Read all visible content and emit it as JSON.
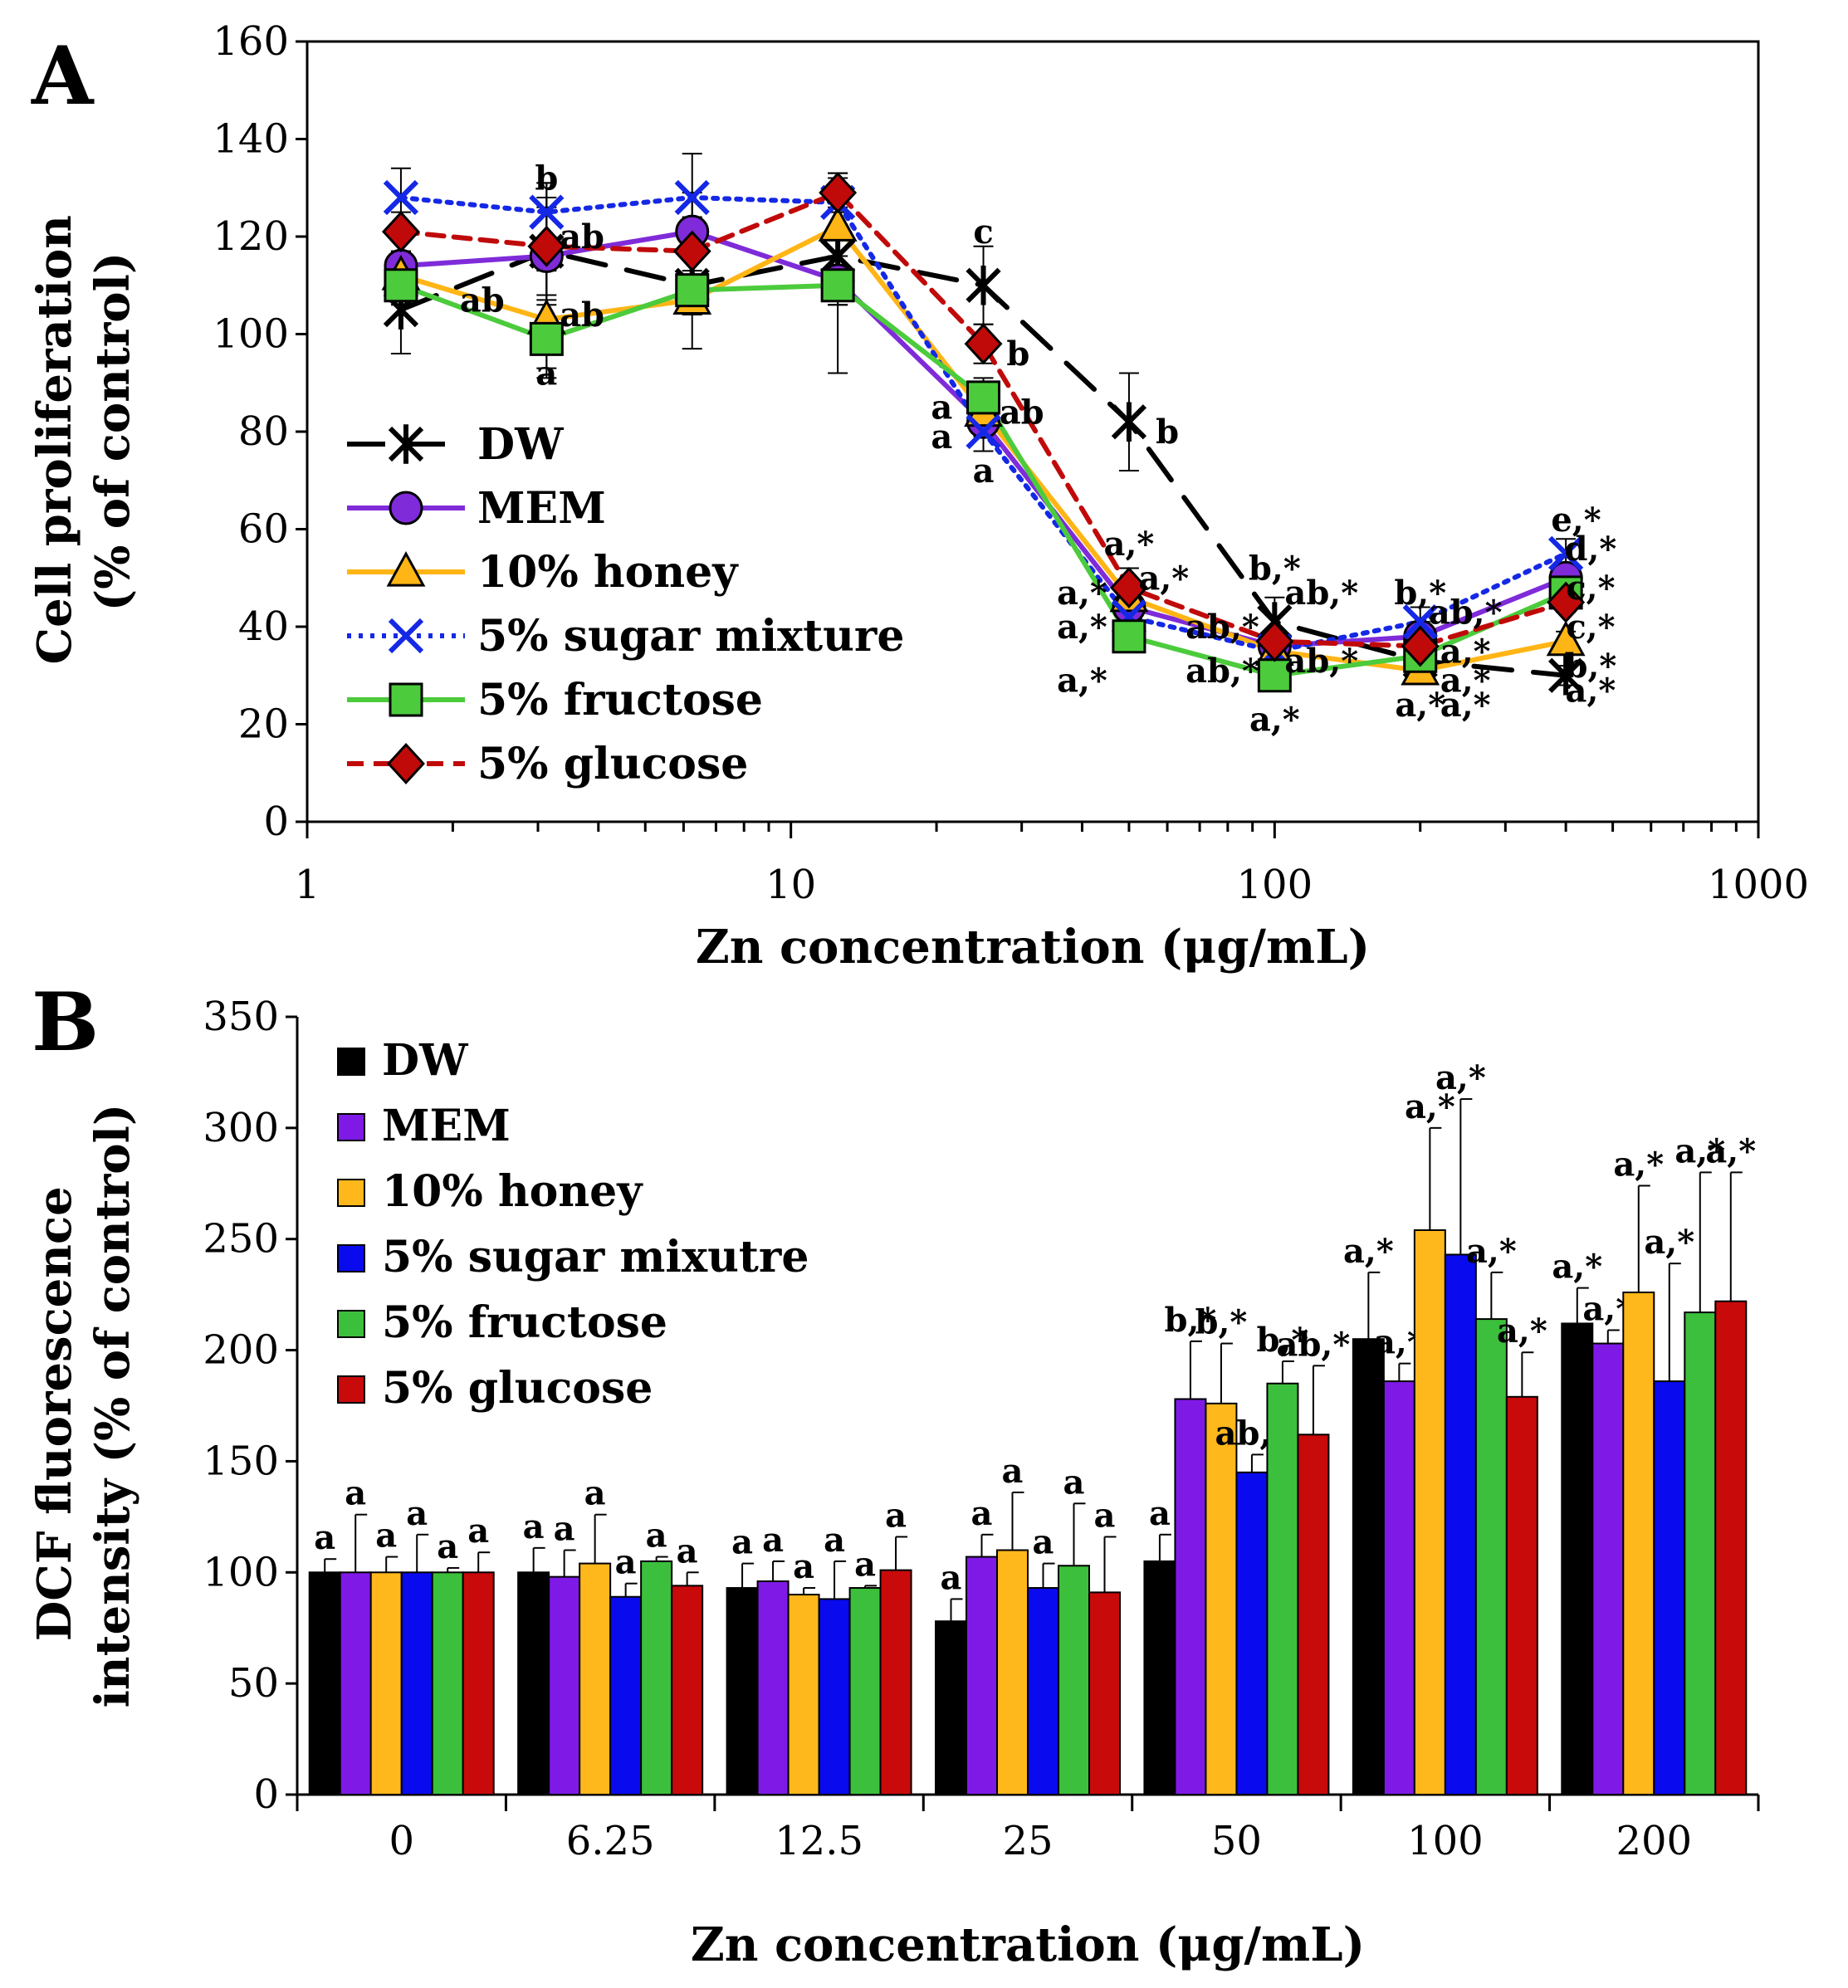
{
  "figure": {
    "panels": [
      "A",
      "B"
    ]
  },
  "chart_data": [
    {
      "panel": "A",
      "type": "line",
      "title": "",
      "xlabel": "Zn concentration (μg/mL)",
      "ylabel_lines": [
        "Cell proliferation",
        "(% of control)"
      ],
      "xscale": "log",
      "xlim": [
        1,
        1000
      ],
      "ylim": [
        0,
        160
      ],
      "x_ticks": [
        1,
        10,
        100,
        1000
      ],
      "x_tick_labels": [
        "1",
        "10",
        "100",
        "1000"
      ],
      "y_ticks": [
        0,
        20,
        40,
        60,
        80,
        100,
        120,
        140,
        160
      ],
      "y_tick_labels": [
        "0",
        "20",
        "40",
        "60",
        "80",
        "100",
        "120",
        "140",
        "160"
      ],
      "x": [
        1.5625,
        3.125,
        6.25,
        12.5,
        25,
        50,
        100,
        200,
        400
      ],
      "legend_position": "lower-left",
      "series": [
        {
          "name": "DW",
          "color": "#000000",
          "dash": "long-dash",
          "marker": "asterisk",
          "values": [
            105,
            117,
            110,
            116,
            110,
            82,
            41,
            33,
            30
          ],
          "err": [
            9,
            14,
            6,
            10,
            8,
            10,
            5,
            3,
            2
          ]
        },
        {
          "name": "MEM",
          "color": "#7F2BD9",
          "dash": "solid",
          "marker": "circle",
          "values": [
            114,
            116,
            121,
            111,
            82,
            44,
            36,
            38,
            50
          ],
          "err": [
            3,
            10,
            8,
            5,
            3,
            4,
            2,
            3,
            3
          ]
        },
        {
          "name": "10% honey",
          "color": "#FFB515",
          "dash": "solid",
          "marker": "triangle",
          "values": [
            112,
            103,
            107,
            122,
            84,
            46,
            35,
            31,
            37
          ],
          "err": [
            3,
            10,
            3,
            10,
            4,
            3,
            2,
            2,
            2
          ]
        },
        {
          "name": "5% sugar mixture",
          "color": "#1428E6",
          "dash": "dotted",
          "marker": "x",
          "values": [
            128,
            125,
            128,
            127,
            80,
            42,
            35,
            41,
            55
          ],
          "err": [
            6,
            6,
            9,
            6,
            4,
            3,
            2,
            3,
            3
          ]
        },
        {
          "name": "5% fructose",
          "color": "#4CCB3C",
          "dash": "solid",
          "marker": "square",
          "values": [
            110,
            99,
            109,
            110,
            87,
            38,
            30,
            34,
            47
          ],
          "err": [
            4,
            8,
            12,
            18,
            4,
            3,
            2,
            2,
            3
          ]
        },
        {
          "name": "5% glucose",
          "color": "#C00A0A",
          "dash": "dashed",
          "marker": "diamond",
          "values": [
            121,
            118,
            117,
            129,
            98,
            48,
            37,
            36,
            45
          ],
          "err": [
            4,
            10,
            7,
            4,
            4,
            4,
            2,
            3,
            2
          ]
        }
      ],
      "annotations": [
        {
          "text": "b",
          "x": 3.125,
          "y": 132
        },
        {
          "text": "ab",
          "x": 3.7,
          "y": 120
        },
        {
          "text": "ab",
          "x": 2.3,
          "y": 107
        },
        {
          "text": "ab",
          "x": 3.7,
          "y": 104
        },
        {
          "text": "a",
          "x": 3.125,
          "y": 92
        },
        {
          "text": "c",
          "x": 25,
          "y": 121
        },
        {
          "text": "b",
          "x": 29.5,
          "y": 96
        },
        {
          "text": "a",
          "x": 20.5,
          "y": 85
        },
        {
          "text": "ab",
          "x": 30,
          "y": 84
        },
        {
          "text": "a",
          "x": 20.5,
          "y": 79
        },
        {
          "text": "a",
          "x": 25,
          "y": 72
        },
        {
          "text": "b",
          "x": 60,
          "y": 80
        },
        {
          "text": "a,*",
          "x": 50,
          "y": 57
        },
        {
          "text": "a,*",
          "x": 59,
          "y": 50
        },
        {
          "text": "a,*",
          "x": 40,
          "y": 47
        },
        {
          "text": "a,*",
          "x": 40,
          "y": 40
        },
        {
          "text": "a,*",
          "x": 40,
          "y": 29
        },
        {
          "text": "b,*",
          "x": 100,
          "y": 52
        },
        {
          "text": "ab,*",
          "x": 125,
          "y": 47
        },
        {
          "text": "ab,*",
          "x": 78,
          "y": 40
        },
        {
          "text": "ab,*",
          "x": 125,
          "y": 33
        },
        {
          "text": "ab,*",
          "x": 78,
          "y": 31
        },
        {
          "text": "a,*",
          "x": 100,
          "y": 21
        },
        {
          "text": "b,*",
          "x": 200,
          "y": 47
        },
        {
          "text": "ab,*",
          "x": 248,
          "y": 43
        },
        {
          "text": "a,*",
          "x": 248,
          "y": 35
        },
        {
          "text": "a,*",
          "x": 248,
          "y": 29
        },
        {
          "text": "a,*",
          "x": 200,
          "y": 24
        },
        {
          "text": "a,*",
          "x": 248,
          "y": 24
        },
        {
          "text": "e,*",
          "x": 420,
          "y": 62
        },
        {
          "text": "d,*",
          "x": 450,
          "y": 56
        },
        {
          "text": "c,*",
          "x": 450,
          "y": 48
        },
        {
          "text": "c,*",
          "x": 450,
          "y": 40
        },
        {
          "text": "b,*",
          "x": 450,
          "y": 32
        },
        {
          "text": "a,*",
          "x": 450,
          "y": 27
        }
      ]
    },
    {
      "panel": "B",
      "type": "bar",
      "title": "",
      "xlabel": "Zn concentration (μg/mL)",
      "ylabel_lines": [
        "DCF fluorescence",
        "intensity (% of control)"
      ],
      "ylim": [
        0,
        350
      ],
      "y_ticks": [
        0,
        50,
        100,
        150,
        200,
        250,
        300,
        350
      ],
      "y_tick_labels": [
        "0",
        "50",
        "100",
        "150",
        "200",
        "250",
        "300",
        "350"
      ],
      "categories": [
        "0",
        "6.25",
        "12.5",
        "25",
        "50",
        "100",
        "200"
      ],
      "legend_position": "top-left",
      "series": [
        {
          "name": "DW",
          "color": "#000000",
          "values": [
            100,
            100,
            93,
            78,
            105,
            205,
            212
          ],
          "err": [
            6,
            11,
            11,
            10,
            12,
            30,
            16
          ],
          "labels": [
            "a",
            "a",
            "a",
            "a",
            "a",
            "a,*",
            "a,*"
          ]
        },
        {
          "name": "MEM",
          "color": "#7F1AE6",
          "values": [
            100,
            98,
            96,
            107,
            178,
            186,
            203
          ],
          "err": [
            26,
            12,
            9,
            10,
            26,
            8,
            6
          ],
          "labels": [
            "a",
            "a",
            "a",
            "a",
            "b,*",
            "a,*",
            "a,*"
          ]
        },
        {
          "name": "10% honey",
          "color": "#FFB81C",
          "values": [
            100,
            104,
            90,
            110,
            176,
            254,
            226
          ],
          "err": [
            7,
            22,
            3,
            26,
            27,
            46,
            48
          ],
          "labels": [
            "a",
            "a",
            "a",
            "a",
            "b,*",
            "a,*",
            "a,*"
          ]
        },
        {
          "name": "5% sugar mixutre",
          "color": "#0A0AEE",
          "values": [
            100,
            89,
            88,
            93,
            145,
            243,
            186
          ],
          "err": [
            17,
            6,
            17,
            11,
            8,
            70,
            53
          ],
          "labels": [
            "a",
            "a",
            "a",
            "a",
            "ab,*",
            "a,*",
            "a,*"
          ]
        },
        {
          "name": "5% fructose",
          "color": "#3CBF3C",
          "values": [
            100,
            105,
            93,
            103,
            185,
            214,
            217
          ],
          "err": [
            2,
            2,
            1,
            28,
            10,
            21,
            63
          ],
          "labels": [
            "a",
            "a",
            "a",
            "a",
            "b,*",
            "a,*",
            "a,*"
          ]
        },
        {
          "name": "5% glucose",
          "color": "#C80A0A",
          "values": [
            100,
            94,
            101,
            91,
            162,
            179,
            222
          ],
          "err": [
            9,
            6,
            15,
            25,
            31,
            20,
            58
          ],
          "labels": [
            "a",
            "a",
            "a",
            "a",
            "ab,*",
            "a,*",
            "a,*"
          ]
        }
      ]
    }
  ]
}
